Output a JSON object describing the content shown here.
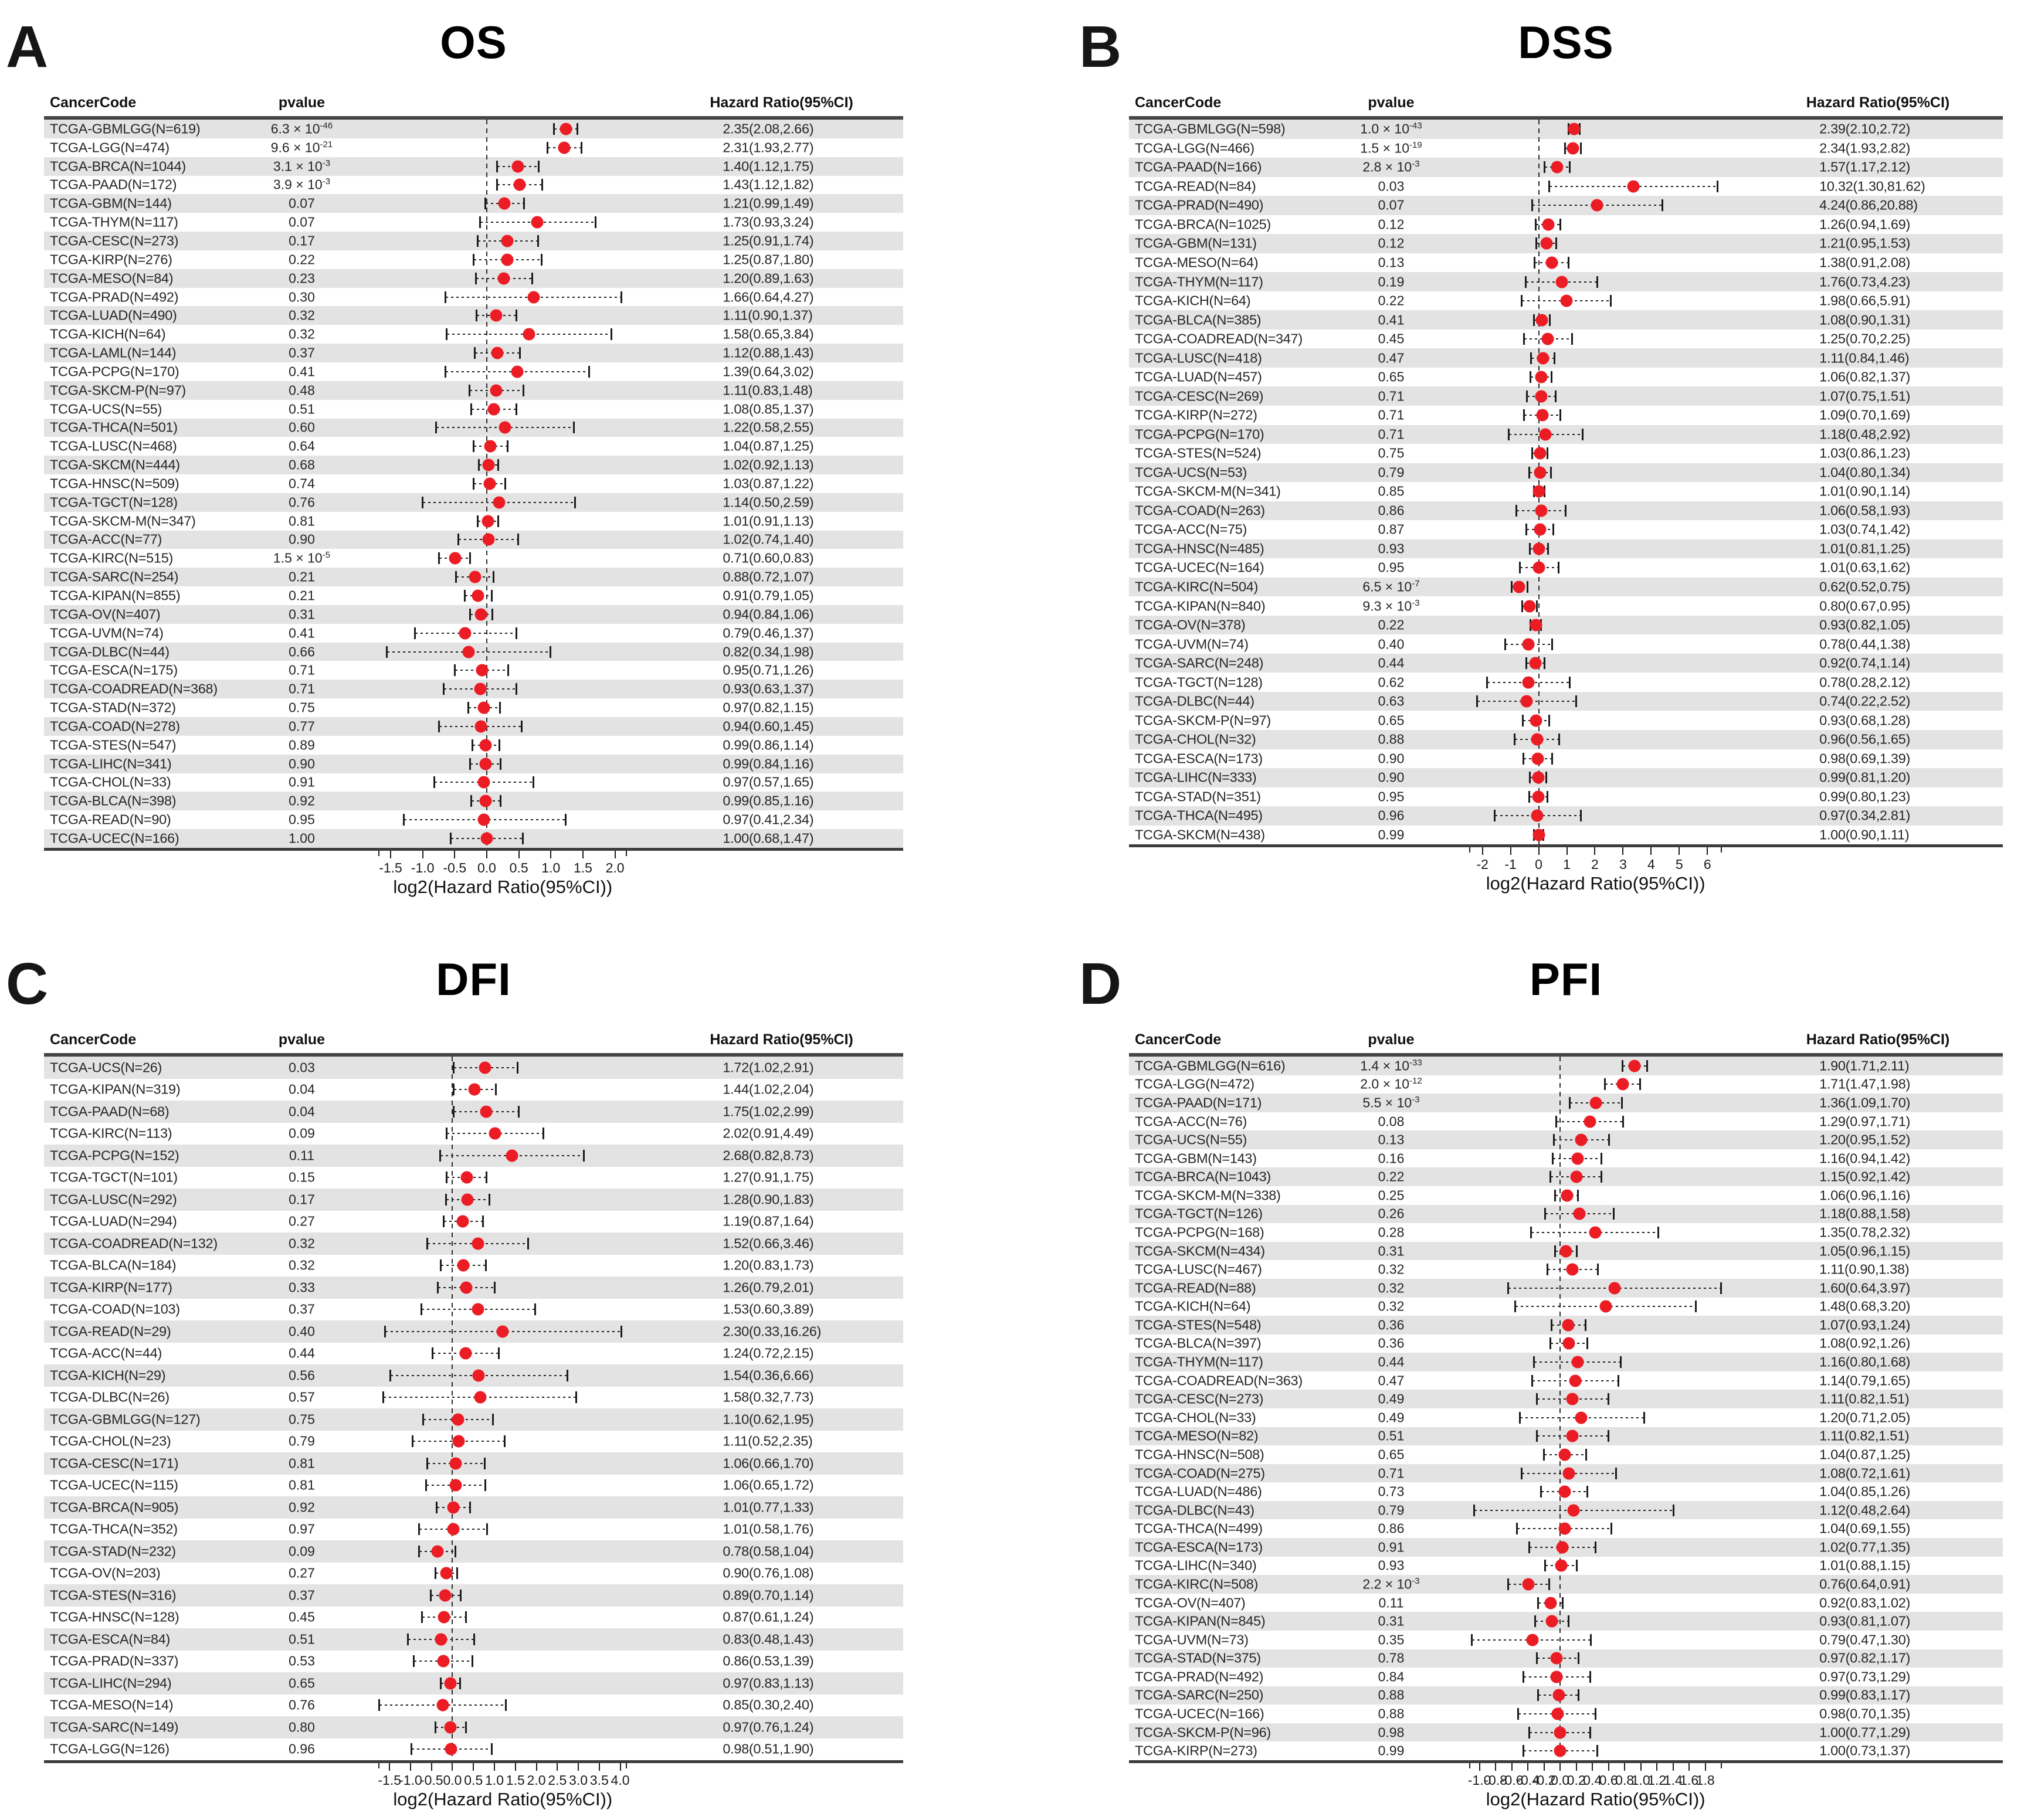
{
  "figure": {
    "axis_label": "log2(Hazard Ratio(95%CI))",
    "columns": {
      "cancer": "CancerCode",
      "pvalue": "pvalue",
      "hr": "Hazard Ratio(95%CI)"
    },
    "dot_color": "#ec1c24",
    "band_color": "#e3e3e3"
  },
  "chart_data": [
    {
      "type": "forest",
      "letter": "A",
      "title": "OS",
      "xlabel": "log2(Hazard Ratio(95%CI))",
      "xlim": [
        -1.68,
        2.18
      ],
      "xticks": [
        "-1.5",
        "-1.0",
        "-0.5",
        "0.0",
        "0.5",
        "1.0",
        "1.5",
        "2.0"
      ],
      "rows": [
        [
          "TCGA-GBMLGG(N=619)",
          "6.3 × 10^-46",
          "2.35(2.08,2.66)"
        ],
        [
          "TCGA-LGG(N=474)",
          "9.6 × 10^-21",
          "2.31(1.93,2.77)"
        ],
        [
          "TCGA-BRCA(N=1044)",
          "3.1 × 10^-3",
          "1.40(1.12,1.75)"
        ],
        [
          "TCGA-PAAD(N=172)",
          "3.9 × 10^-3",
          "1.43(1.12,1.82)"
        ],
        [
          "TCGA-GBM(N=144)",
          "0.07",
          "1.21(0.99,1.49)"
        ],
        [
          "TCGA-THYM(N=117)",
          "0.07",
          "1.73(0.93,3.24)"
        ],
        [
          "TCGA-CESC(N=273)",
          "0.17",
          "1.25(0.91,1.74)"
        ],
        [
          "TCGA-KIRP(N=276)",
          "0.22",
          "1.25(0.87,1.80)"
        ],
        [
          "TCGA-MESO(N=84)",
          "0.23",
          "1.20(0.89,1.63)"
        ],
        [
          "TCGA-PRAD(N=492)",
          "0.30",
          "1.66(0.64,4.27)"
        ],
        [
          "TCGA-LUAD(N=490)",
          "0.32",
          "1.11(0.90,1.37)"
        ],
        [
          "TCGA-KICH(N=64)",
          "0.32",
          "1.58(0.65,3.84)"
        ],
        [
          "TCGA-LAML(N=144)",
          "0.37",
          "1.12(0.88,1.43)"
        ],
        [
          "TCGA-PCPG(N=170)",
          "0.41",
          "1.39(0.64,3.02)"
        ],
        [
          "TCGA-SKCM-P(N=97)",
          "0.48",
          "1.11(0.83,1.48)"
        ],
        [
          "TCGA-UCS(N=55)",
          "0.51",
          "1.08(0.85,1.37)"
        ],
        [
          "TCGA-THCA(N=501)",
          "0.60",
          "1.22(0.58,2.55)"
        ],
        [
          "TCGA-LUSC(N=468)",
          "0.64",
          "1.04(0.87,1.25)"
        ],
        [
          "TCGA-SKCM(N=444)",
          "0.68",
          "1.02(0.92,1.13)"
        ],
        [
          "TCGA-HNSC(N=509)",
          "0.74",
          "1.03(0.87,1.22)"
        ],
        [
          "TCGA-TGCT(N=128)",
          "0.76",
          "1.14(0.50,2.59)"
        ],
        [
          "TCGA-SKCM-M(N=347)",
          "0.81",
          "1.01(0.91,1.13)"
        ],
        [
          "TCGA-ACC(N=77)",
          "0.90",
          "1.02(0.74,1.40)"
        ],
        [
          "TCGA-KIRC(N=515)",
          "1.5 × 10^-5",
          "0.71(0.60,0.83)"
        ],
        [
          "TCGA-SARC(N=254)",
          "0.21",
          "0.88(0.72,1.07)"
        ],
        [
          "TCGA-KIPAN(N=855)",
          "0.21",
          "0.91(0.79,1.05)"
        ],
        [
          "TCGA-OV(N=407)",
          "0.31",
          "0.94(0.84,1.06)"
        ],
        [
          "TCGA-UVM(N=74)",
          "0.41",
          "0.79(0.46,1.37)"
        ],
        [
          "TCGA-DLBC(N=44)",
          "0.66",
          "0.82(0.34,1.98)"
        ],
        [
          "TCGA-ESCA(N=175)",
          "0.71",
          "0.95(0.71,1.26)"
        ],
        [
          "TCGA-COADREAD(N=368)",
          "0.71",
          "0.93(0.63,1.37)"
        ],
        [
          "TCGA-STAD(N=372)",
          "0.75",
          "0.97(0.82,1.15)"
        ],
        [
          "TCGA-COAD(N=278)",
          "0.77",
          "0.94(0.60,1.45)"
        ],
        [
          "TCGA-STES(N=547)",
          "0.89",
          "0.99(0.86,1.14)"
        ],
        [
          "TCGA-LIHC(N=341)",
          "0.90",
          "0.99(0.84,1.16)"
        ],
        [
          "TCGA-CHOL(N=33)",
          "0.91",
          "0.97(0.57,1.65)"
        ],
        [
          "TCGA-BLCA(N=398)",
          "0.92",
          "0.99(0.85,1.16)"
        ],
        [
          "TCGA-READ(N=90)",
          "0.95",
          "0.97(0.41,2.34)"
        ],
        [
          "TCGA-UCEC(N=166)",
          "1.00",
          "1.00(0.68,1.47)"
        ]
      ]
    },
    {
      "type": "forest",
      "letter": "B",
      "title": "DSS",
      "xlabel": "log2(Hazard Ratio(95%CI))",
      "xlim": [
        -2.45,
        6.5
      ],
      "xticks": [
        "-2",
        "-1",
        "0",
        "1",
        "2",
        "3",
        "4",
        "5",
        "6"
      ],
      "rows": [
        [
          "TCGA-GBMLGG(N=598)",
          "1.0 × 10^-43",
          "2.39(2.10,2.72)"
        ],
        [
          "TCGA-LGG(N=466)",
          "1.5 × 10^-19",
          "2.34(1.93,2.82)"
        ],
        [
          "TCGA-PAAD(N=166)",
          "2.8 × 10^-3",
          "1.57(1.17,2.12)"
        ],
        [
          "TCGA-READ(N=84)",
          "0.03",
          "10.32(1.30,81.62)"
        ],
        [
          "TCGA-PRAD(N=490)",
          "0.07",
          "4.24(0.86,20.88)"
        ],
        [
          "TCGA-BRCA(N=1025)",
          "0.12",
          "1.26(0.94,1.69)"
        ],
        [
          "TCGA-GBM(N=131)",
          "0.12",
          "1.21(0.95,1.53)"
        ],
        [
          "TCGA-MESO(N=64)",
          "0.13",
          "1.38(0.91,2.08)"
        ],
        [
          "TCGA-THYM(N=117)",
          "0.19",
          "1.76(0.73,4.23)"
        ],
        [
          "TCGA-KICH(N=64)",
          "0.22",
          "1.98(0.66,5.91)"
        ],
        [
          "TCGA-BLCA(N=385)",
          "0.41",
          "1.08(0.90,1.31)"
        ],
        [
          "TCGA-COADREAD(N=347)",
          "0.45",
          "1.25(0.70,2.25)"
        ],
        [
          "TCGA-LUSC(N=418)",
          "0.47",
          "1.11(0.84,1.46)"
        ],
        [
          "TCGA-LUAD(N=457)",
          "0.65",
          "1.06(0.82,1.37)"
        ],
        [
          "TCGA-CESC(N=269)",
          "0.71",
          "1.07(0.75,1.51)"
        ],
        [
          "TCGA-KIRP(N=272)",
          "0.71",
          "1.09(0.70,1.69)"
        ],
        [
          "TCGA-PCPG(N=170)",
          "0.71",
          "1.18(0.48,2.92)"
        ],
        [
          "TCGA-STES(N=524)",
          "0.75",
          "1.03(0.86,1.23)"
        ],
        [
          "TCGA-UCS(N=53)",
          "0.79",
          "1.04(0.80,1.34)"
        ],
        [
          "TCGA-SKCM-M(N=341)",
          "0.85",
          "1.01(0.90,1.14)"
        ],
        [
          "TCGA-COAD(N=263)",
          "0.86",
          "1.06(0.58,1.93)"
        ],
        [
          "TCGA-ACC(N=75)",
          "0.87",
          "1.03(0.74,1.42)"
        ],
        [
          "TCGA-HNSC(N=485)",
          "0.93",
          "1.01(0.81,1.25)"
        ],
        [
          "TCGA-UCEC(N=164)",
          "0.95",
          "1.01(0.63,1.62)"
        ],
        [
          "TCGA-KIRC(N=504)",
          "6.5 × 10^-7",
          "0.62(0.52,0.75)"
        ],
        [
          "TCGA-KIPAN(N=840)",
          "9.3 × 10^-3",
          "0.80(0.67,0.95)"
        ],
        [
          "TCGA-OV(N=378)",
          "0.22",
          "0.93(0.82,1.05)"
        ],
        [
          "TCGA-UVM(N=74)",
          "0.40",
          "0.78(0.44,1.38)"
        ],
        [
          "TCGA-SARC(N=248)",
          "0.44",
          "0.92(0.74,1.14)"
        ],
        [
          "TCGA-TGCT(N=128)",
          "0.62",
          "0.78(0.28,2.12)"
        ],
        [
          "TCGA-DLBC(N=44)",
          "0.63",
          "0.74(0.22,2.52)"
        ],
        [
          "TCGA-SKCM-P(N=97)",
          "0.65",
          "0.93(0.68,1.28)"
        ],
        [
          "TCGA-CHOL(N=32)",
          "0.88",
          "0.96(0.56,1.65)"
        ],
        [
          "TCGA-ESCA(N=173)",
          "0.90",
          "0.98(0.69,1.39)"
        ],
        [
          "TCGA-LIHC(N=333)",
          "0.90",
          "0.99(0.81,1.20)"
        ],
        [
          "TCGA-STAD(N=351)",
          "0.95",
          "0.99(0.80,1.23)"
        ],
        [
          "TCGA-THCA(N=495)",
          "0.96",
          "0.97(0.34,2.81)"
        ],
        [
          "TCGA-SKCM(N=438)",
          "0.99",
          "1.00(0.90,1.11)"
        ]
      ]
    },
    {
      "type": "forest",
      "letter": "C",
      "title": "DFI",
      "xlabel": "log2(Hazard Ratio(95%CI))",
      "xlim": [
        -1.75,
        4.15
      ],
      "xticks": [
        "-1.5",
        "-1.0",
        "-0.5",
        "0.0",
        "0.5",
        "1.0",
        "1.5",
        "2.0",
        "2.5",
        "3.0",
        "3.5",
        "4.0"
      ],
      "rows": [
        [
          "TCGA-UCS(N=26)",
          "0.03",
          "1.72(1.02,2.91)"
        ],
        [
          "TCGA-KIPAN(N=319)",
          "0.04",
          "1.44(1.02,2.04)"
        ],
        [
          "TCGA-PAAD(N=68)",
          "0.04",
          "1.75(1.02,2.99)"
        ],
        [
          "TCGA-KIRC(N=113)",
          "0.09",
          "2.02(0.91,4.49)"
        ],
        [
          "TCGA-PCPG(N=152)",
          "0.11",
          "2.68(0.82,8.73)"
        ],
        [
          "TCGA-TGCT(N=101)",
          "0.15",
          "1.27(0.91,1.75)"
        ],
        [
          "TCGA-LUSC(N=292)",
          "0.17",
          "1.28(0.90,1.83)"
        ],
        [
          "TCGA-LUAD(N=294)",
          "0.27",
          "1.19(0.87,1.64)"
        ],
        [
          "TCGA-COADREAD(N=132)",
          "0.32",
          "1.52(0.66,3.46)"
        ],
        [
          "TCGA-BLCA(N=184)",
          "0.32",
          "1.20(0.83,1.73)"
        ],
        [
          "TCGA-KIRP(N=177)",
          "0.33",
          "1.26(0.79,2.01)"
        ],
        [
          "TCGA-COAD(N=103)",
          "0.37",
          "1.53(0.60,3.89)"
        ],
        [
          "TCGA-READ(N=29)",
          "0.40",
          "2.30(0.33,16.26)"
        ],
        [
          "TCGA-ACC(N=44)",
          "0.44",
          "1.24(0.72,2.15)"
        ],
        [
          "TCGA-KICH(N=29)",
          "0.56",
          "1.54(0.36,6.66)"
        ],
        [
          "TCGA-DLBC(N=26)",
          "0.57",
          "1.58(0.32,7.73)"
        ],
        [
          "TCGA-GBMLGG(N=127)",
          "0.75",
          "1.10(0.62,1.95)"
        ],
        [
          "TCGA-CHOL(N=23)",
          "0.79",
          "1.11(0.52,2.35)"
        ],
        [
          "TCGA-CESC(N=171)",
          "0.81",
          "1.06(0.66,1.70)"
        ],
        [
          "TCGA-UCEC(N=115)",
          "0.81",
          "1.06(0.65,1.72)"
        ],
        [
          "TCGA-BRCA(N=905)",
          "0.92",
          "1.01(0.77,1.33)"
        ],
        [
          "TCGA-THCA(N=352)",
          "0.97",
          "1.01(0.58,1.76)"
        ],
        [
          "TCGA-STAD(N=232)",
          "0.09",
          "0.78(0.58,1.04)"
        ],
        [
          "TCGA-OV(N=203)",
          "0.27",
          "0.90(0.76,1.08)"
        ],
        [
          "TCGA-STES(N=316)",
          "0.37",
          "0.89(0.70,1.14)"
        ],
        [
          "TCGA-HNSC(N=128)",
          "0.45",
          "0.87(0.61,1.24)"
        ],
        [
          "TCGA-ESCA(N=84)",
          "0.51",
          "0.83(0.48,1.43)"
        ],
        [
          "TCGA-PRAD(N=337)",
          "0.53",
          "0.86(0.53,1.39)"
        ],
        [
          "TCGA-LIHC(N=294)",
          "0.65",
          "0.97(0.83,1.13)"
        ],
        [
          "TCGA-MESO(N=14)",
          "0.76",
          "0.85(0.30,2.40)"
        ],
        [
          "TCGA-SARC(N=149)",
          "0.80",
          "0.97(0.76,1.24)"
        ],
        [
          "TCGA-LGG(N=126)",
          "0.96",
          "0.98(0.51,1.90)"
        ]
      ]
    },
    {
      "type": "forest",
      "letter": "D",
      "title": "PFI",
      "xlabel": "log2(Hazard Ratio(95%CI))",
      "xlim": [
        -1.12,
        2.0
      ],
      "xticks": [
        "-1.0",
        "-0.8",
        "-0.6",
        "-0.4",
        "-0.2",
        "0.0",
        "0.2",
        "0.4",
        "0.6",
        "0.8",
        "1.0",
        "1.2",
        "1.4",
        "1.6",
        "1.8"
      ],
      "rows": [
        [
          "TCGA-GBMLGG(N=616)",
          "1.4 × 10^-33",
          "1.90(1.71,2.11)"
        ],
        [
          "TCGA-LGG(N=472)",
          "2.0 × 10^-12",
          "1.71(1.47,1.98)"
        ],
        [
          "TCGA-PAAD(N=171)",
          "5.5 × 10^-3",
          "1.36(1.09,1.70)"
        ],
        [
          "TCGA-ACC(N=76)",
          "0.08",
          "1.29(0.97,1.71)"
        ],
        [
          "TCGA-UCS(N=55)",
          "0.13",
          "1.20(0.95,1.52)"
        ],
        [
          "TCGA-GBM(N=143)",
          "0.16",
          "1.16(0.94,1.42)"
        ],
        [
          "TCGA-BRCA(N=1043)",
          "0.22",
          "1.15(0.92,1.42)"
        ],
        [
          "TCGA-SKCM-M(N=338)",
          "0.25",
          "1.06(0.96,1.16)"
        ],
        [
          "TCGA-TGCT(N=126)",
          "0.26",
          "1.18(0.88,1.58)"
        ],
        [
          "TCGA-PCPG(N=168)",
          "0.28",
          "1.35(0.78,2.32)"
        ],
        [
          "TCGA-SKCM(N=434)",
          "0.31",
          "1.05(0.96,1.15)"
        ],
        [
          "TCGA-LUSC(N=467)",
          "0.32",
          "1.11(0.90,1.38)"
        ],
        [
          "TCGA-READ(N=88)",
          "0.32",
          "1.60(0.64,3.97)"
        ],
        [
          "TCGA-KICH(N=64)",
          "0.32",
          "1.48(0.68,3.20)"
        ],
        [
          "TCGA-STES(N=548)",
          "0.36",
          "1.07(0.93,1.24)"
        ],
        [
          "TCGA-BLCA(N=397)",
          "0.36",
          "1.08(0.92,1.26)"
        ],
        [
          "TCGA-THYM(N=117)",
          "0.44",
          "1.16(0.80,1.68)"
        ],
        [
          "TCGA-COADREAD(N=363)",
          "0.47",
          "1.14(0.79,1.65)"
        ],
        [
          "TCGA-CESC(N=273)",
          "0.49",
          "1.11(0.82,1.51)"
        ],
        [
          "TCGA-CHOL(N=33)",
          "0.49",
          "1.20(0.71,2.05)"
        ],
        [
          "TCGA-MESO(N=82)",
          "0.51",
          "1.11(0.82,1.51)"
        ],
        [
          "TCGA-HNSC(N=508)",
          "0.65",
          "1.04(0.87,1.25)"
        ],
        [
          "TCGA-COAD(N=275)",
          "0.71",
          "1.08(0.72,1.61)"
        ],
        [
          "TCGA-LUAD(N=486)",
          "0.73",
          "1.04(0.85,1.26)"
        ],
        [
          "TCGA-DLBC(N=43)",
          "0.79",
          "1.12(0.48,2.64)"
        ],
        [
          "TCGA-THCA(N=499)",
          "0.86",
          "1.04(0.69,1.55)"
        ],
        [
          "TCGA-ESCA(N=173)",
          "0.91",
          "1.02(0.77,1.35)"
        ],
        [
          "TCGA-LIHC(N=340)",
          "0.93",
          "1.01(0.88,1.15)"
        ],
        [
          "TCGA-KIRC(N=508)",
          "2.2 × 10^-3",
          "0.76(0.64,0.91)"
        ],
        [
          "TCGA-OV(N=407)",
          "0.11",
          "0.92(0.83,1.02)"
        ],
        [
          "TCGA-KIPAN(N=845)",
          "0.31",
          "0.93(0.81,1.07)"
        ],
        [
          "TCGA-UVM(N=73)",
          "0.35",
          "0.79(0.47,1.30)"
        ],
        [
          "TCGA-STAD(N=375)",
          "0.78",
          "0.97(0.82,1.17)"
        ],
        [
          "TCGA-PRAD(N=492)",
          "0.84",
          "0.97(0.73,1.29)"
        ],
        [
          "TCGA-SARC(N=250)",
          "0.88",
          "0.99(0.83,1.17)"
        ],
        [
          "TCGA-UCEC(N=166)",
          "0.88",
          "0.98(0.70,1.35)"
        ],
        [
          "TCGA-SKCM-P(N=96)",
          "0.98",
          "1.00(0.77,1.29)"
        ],
        [
          "TCGA-KIRP(N=273)",
          "0.99",
          "1.00(0.73,1.37)"
        ]
      ]
    }
  ]
}
